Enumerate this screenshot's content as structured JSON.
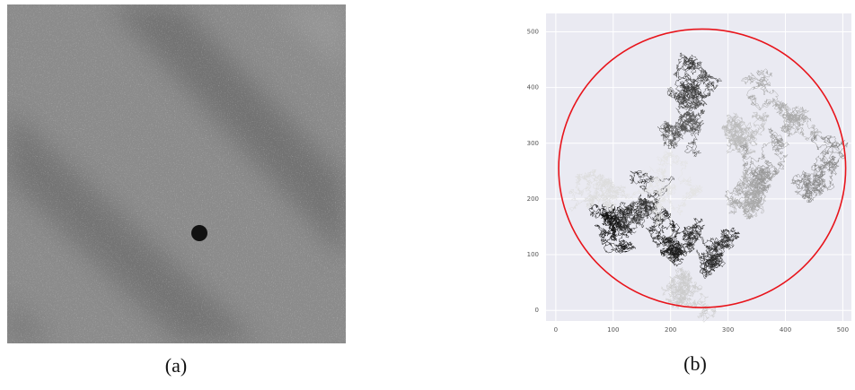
{
  "panels": [
    {
      "caption": "(a)"
    },
    {
      "caption": "(b)"
    }
  ],
  "chart_data": {
    "type": "trajectory",
    "xlim": [
      -17,
      515
    ],
    "ylim": [
      -19,
      533
    ],
    "xticks": [
      0,
      100,
      200,
      300,
      400,
      500
    ],
    "yticks": [
      0,
      100,
      200,
      300,
      400,
      500
    ],
    "grid": true,
    "circle": {
      "cx": 255,
      "cy": 255,
      "r": 250,
      "color": "#e8141b"
    }
  }
}
